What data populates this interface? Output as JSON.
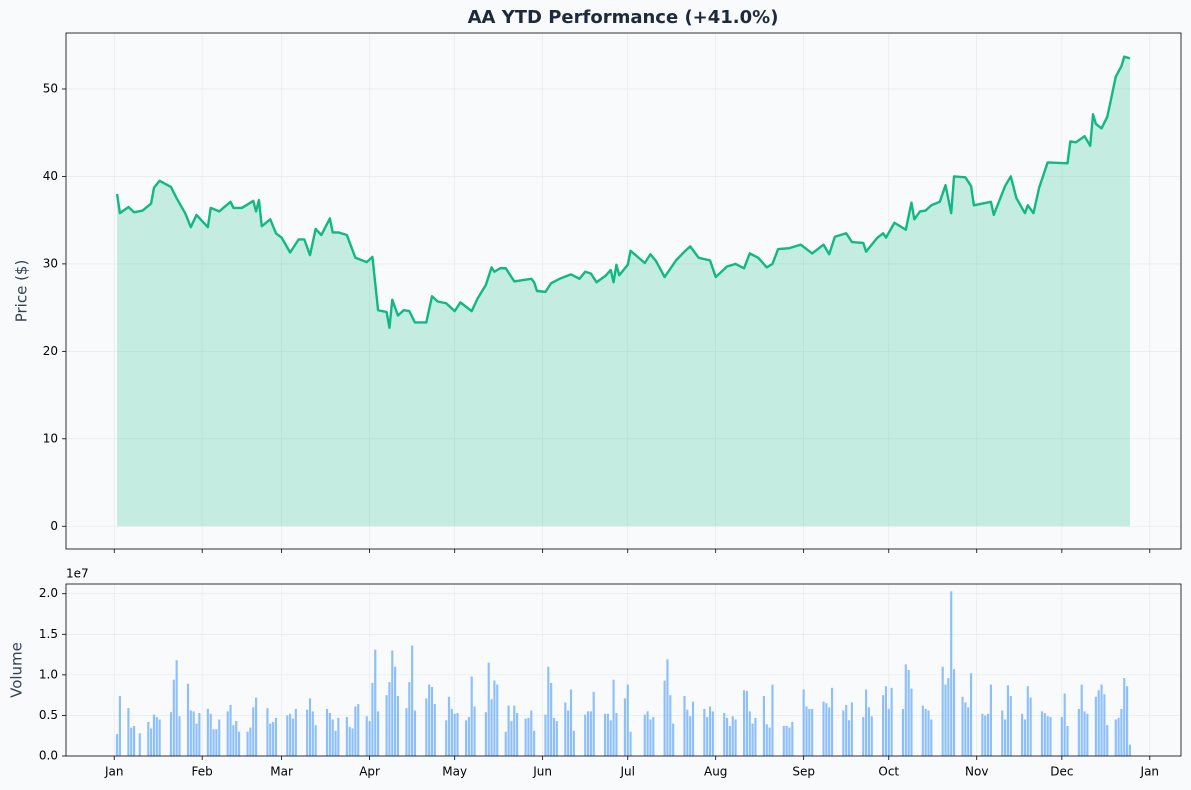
{
  "chart_data": [
    {
      "type": "line",
      "title": "AA YTD Performance (+41.0%)",
      "ylabel": "Price ($)",
      "color": "#10b981",
      "grid": true,
      "xlim": [
        -17,
        376
      ],
      "ylim": [
        -2.6,
        56.4
      ],
      "yticks": [
        0,
        10,
        20,
        30,
        40,
        50
      ],
      "x": [
        1,
        2,
        5,
        7,
        10,
        13,
        14,
        16,
        20,
        22,
        25,
        27,
        29,
        33,
        34,
        37,
        41,
        42,
        45,
        49,
        50,
        51,
        52,
        55,
        57,
        59,
        62,
        65,
        67,
        69,
        71,
        73,
        76,
        77,
        79,
        82,
        85,
        89,
        91,
        93,
        96,
        97,
        98,
        100,
        102,
        104,
        106,
        110,
        112,
        114,
        117,
        120,
        122,
        126,
        128,
        131,
        133,
        134,
        136,
        138,
        141,
        147,
        148,
        149,
        152,
        154,
        157,
        161,
        164,
        166,
        168,
        170,
        173,
        175,
        176,
        177,
        178,
        181,
        182,
        187,
        189,
        191,
        194,
        198,
        201,
        203,
        206,
        210,
        212,
        216,
        219,
        222,
        224,
        227,
        230,
        232,
        234,
        238,
        242,
        246,
        250,
        252,
        254,
        258,
        260,
        264,
        265,
        269,
        271,
        272,
        275,
        279,
        281,
        282,
        284,
        286,
        288,
        291,
        293,
        295,
        296,
        300,
        302,
        303,
        309,
        310,
        314,
        316,
        318,
        321,
        322,
        324,
        326,
        329,
        336,
        337,
        339,
        342,
        344,
        345,
        346,
        348,
        350,
        351,
        353,
        355,
        356,
        358
      ],
      "values": [
        38.0,
        35.8,
        36.5,
        35.9,
        36.1,
        36.9,
        38.7,
        39.5,
        38.8,
        37.5,
        35.8,
        34.2,
        35.6,
        34.2,
        36.4,
        36.0,
        37.1,
        36.4,
        36.4,
        37.2,
        36.0,
        37.3,
        34.3,
        35.1,
        33.5,
        33.0,
        31.3,
        32.8,
        32.8,
        31.0,
        34.0,
        33.3,
        35.2,
        33.6,
        33.6,
        33.3,
        30.7,
        30.2,
        30.8,
        24.7,
        24.5,
        22.7,
        25.9,
        24.1,
        24.7,
        24.6,
        23.3,
        23.3,
        26.3,
        25.7,
        25.5,
        24.6,
        25.6,
        24.6,
        26.0,
        27.6,
        29.6,
        29.1,
        29.5,
        29.5,
        28.0,
        28.3,
        27.9,
        26.9,
        26.8,
        27.8,
        28.3,
        28.8,
        28.3,
        29.1,
        28.9,
        27.9,
        28.6,
        29.3,
        27.9,
        29.9,
        28.7,
        29.9,
        31.5,
        30.1,
        31.1,
        30.3,
        28.5,
        30.4,
        31.4,
        32.0,
        30.7,
        30.4,
        28.5,
        29.7,
        30.0,
        29.5,
        31.2,
        30.7,
        29.6,
        30.0,
        31.7,
        31.8,
        32.2,
        31.2,
        32.2,
        31.1,
        33.1,
        33.5,
        32.5,
        32.4,
        31.4,
        33.0,
        33.5,
        33.0,
        34.7,
        33.9,
        37.0,
        35.1,
        36.0,
        36.1,
        36.7,
        37.1,
        39.0,
        35.8,
        40.0,
        39.9,
        38.9,
        36.7,
        37.1,
        35.6,
        38.9,
        40.0,
        37.5,
        35.8,
        36.7,
        35.8,
        38.7,
        41.6,
        41.5,
        44.0,
        43.9,
        44.6,
        43.5,
        47.1,
        46.0,
        45.5,
        46.8,
        48.3,
        51.4,
        52.6,
        53.7,
        53.5
      ]
    },
    {
      "type": "bar",
      "ylabel": "Volume",
      "y_offset_label": "1e7",
      "color": "#60a5fa",
      "grid": true,
      "xlim": [
        -17,
        376
      ],
      "ylim": [
        0,
        2.12
      ],
      "yticks": [
        {
          "value": 0,
          "label": "0.0"
        },
        0.5,
        {
          "value": 1,
          "label": "1.0"
        },
        1.5,
        {
          "value": 2,
          "label": "2.0"
        }
      ],
      "xticks": [
        {
          "value": 0,
          "label": "Jan"
        },
        {
          "value": 31,
          "label": "Feb"
        },
        {
          "value": 59,
          "label": "Mar"
        },
        {
          "value": 90,
          "label": "Apr"
        },
        {
          "value": 120,
          "label": "May"
        },
        {
          "value": 151,
          "label": "Jun"
        },
        {
          "value": 181,
          "label": "Jul"
        },
        {
          "value": 212,
          "label": "Aug"
        },
        {
          "value": 243,
          "label": "Sep"
        },
        {
          "value": 273,
          "label": "Oct"
        },
        {
          "value": 304,
          "label": "Nov"
        },
        {
          "value": 334,
          "label": "Dec"
        },
        {
          "value": 365,
          "label": "Jan"
        }
      ],
      "x": [
        1,
        2,
        5,
        6,
        7,
        9,
        12,
        13,
        14,
        15,
        16,
        20,
        21,
        22,
        23,
        26,
        27,
        28,
        29,
        30,
        33,
        34,
        35,
        36,
        37,
        40,
        41,
        42,
        43,
        44,
        47,
        48,
        49,
        50,
        54,
        55,
        56,
        57,
        61,
        62,
        63,
        64,
        68,
        69,
        70,
        71,
        75,
        76,
        77,
        78,
        79,
        82,
        83,
        84,
        85,
        86,
        89,
        90,
        91,
        92,
        93,
        96,
        97,
        98,
        99,
        100,
        103,
        104,
        105,
        106,
        110,
        111,
        112,
        113,
        117,
        118,
        119,
        120,
        121,
        124,
        125,
        126,
        127,
        131,
        132,
        133,
        134,
        135,
        138,
        139,
        140,
        141,
        142,
        145,
        146,
        147,
        148,
        152,
        153,
        154,
        155,
        156,
        159,
        160,
        161,
        162,
        166,
        167,
        168,
        169,
        173,
        174,
        175,
        176,
        177,
        180,
        181,
        182,
        187,
        188,
        189,
        190,
        194,
        195,
        196,
        197,
        201,
        202,
        203,
        204,
        208,
        209,
        210,
        211,
        215,
        216,
        217,
        218,
        219,
        222,
        223,
        224,
        225,
        226,
        229,
        230,
        231,
        232,
        236,
        237,
        238,
        239,
        243,
        244,
        245,
        246,
        250,
        251,
        252,
        253,
        257,
        258,
        259,
        260,
        264,
        265,
        266,
        267,
        271,
        272,
        273,
        274,
        278,
        279,
        280,
        281,
        285,
        286,
        287,
        288,
        292,
        293,
        294,
        295,
        296,
        299,
        300,
        301,
        302,
        306,
        307,
        308,
        309,
        313,
        314,
        315,
        316,
        320,
        321,
        322,
        323,
        327,
        328,
        329,
        330,
        334,
        335,
        336,
        340,
        341,
        342,
        343,
        346,
        347,
        348,
        349,
        350,
        353,
        354,
        355,
        356,
        357,
        358
      ],
      "values": [
        0.27,
        0.74,
        0.59,
        0.35,
        0.37,
        0.28,
        0.42,
        0.34,
        0.51,
        0.48,
        0.45,
        0.54,
        0.94,
        1.18,
        0.49,
        0.89,
        0.56,
        0.55,
        0.4,
        0.53,
        0.58,
        0.52,
        0.33,
        0.33,
        0.45,
        0.55,
        0.63,
        0.38,
        0.43,
        0.3,
        0.3,
        0.35,
        0.6,
        0.72,
        0.59,
        0.4,
        0.42,
        0.47,
        0.5,
        0.52,
        0.46,
        0.58,
        0.57,
        0.71,
        0.55,
        0.38,
        0.58,
        0.53,
        0.45,
        0.31,
        0.47,
        0.48,
        0.36,
        0.34,
        0.61,
        0.64,
        0.49,
        0.43,
        0.9,
        1.31,
        0.55,
        0.75,
        0.91,
        1.3,
        1.1,
        0.74,
        0.59,
        0.91,
        1.36,
        0.56,
        0.71,
        0.88,
        0.85,
        0.64,
        0.44,
        0.73,
        0.58,
        0.52,
        0.53,
        0.44,
        0.48,
        0.98,
        0.61,
        0.54,
        1.15,
        0.7,
        0.93,
        0.88,
        0.3,
        0.62,
        0.43,
        0.62,
        0.53,
        0.46,
        0.47,
        0.56,
        0.31,
        0.51,
        1.1,
        0.9,
        0.47,
        0.43,
        0.66,
        0.56,
        0.82,
        0.31,
        0.51,
        0.55,
        0.55,
        0.79,
        0.52,
        0.52,
        0.44,
        0.94,
        0.53,
        0.71,
        0.88,
        0.3,
        0.51,
        0.55,
        0.45,
        0.48,
        0.93,
        1.19,
        0.75,
        0.4,
        0.74,
        0.57,
        0.49,
        0.67,
        0.58,
        0.48,
        0.61,
        0.55,
        0.53,
        0.47,
        0.37,
        0.49,
        0.45,
        0.81,
        0.8,
        0.55,
        0.4,
        0.47,
        0.74,
        0.39,
        0.35,
        0.88,
        0.37,
        0.37,
        0.35,
        0.42,
        0.82,
        0.61,
        0.58,
        0.58,
        0.67,
        0.65,
        0.6,
        0.84,
        0.56,
        0.63,
        0.44,
        0.66,
        0.48,
        0.82,
        0.6,
        0.49,
        0.75,
        0.86,
        0.58,
        0.84,
        0.58,
        1.13,
        1.06,
        0.83,
        0.62,
        0.58,
        0.56,
        0.45,
        1.1,
        0.88,
        0.96,
        2.03,
        1.07,
        0.73,
        0.66,
        0.6,
        1.02,
        0.52,
        0.5,
        0.52,
        0.88,
        0.56,
        0.45,
        0.87,
        0.74,
        0.52,
        0.45,
        0.86,
        0.72,
        0.55,
        0.53,
        0.49,
        0.48,
        0.48,
        0.77,
        0.37,
        0.58,
        0.88,
        0.55,
        0.52,
        0.73,
        0.81,
        0.88,
        0.76,
        0.38,
        0.45,
        0.47,
        0.58,
        0.96,
        0.86,
        0.14
      ]
    }
  ]
}
